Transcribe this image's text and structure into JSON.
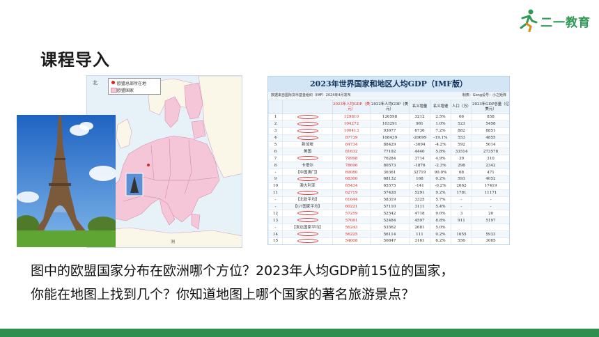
{
  "brand": {
    "logo_text": "二一教育"
  },
  "slide": {
    "heading": "课程导入"
  },
  "map": {
    "legend": {
      "capital": "欧盟总部所在地",
      "members": "欧盟国家"
    }
  },
  "gdp_table": {
    "title": "2023年世界国家和地区人均GDP（IMF版）",
    "source_left": "数据来自国际货币基金组织（IMF）2024年4月发布",
    "source_right": "制表：Gong设号：小之矩阵",
    "columns": [
      "",
      "",
      "2023年人均GDP（美元）",
      "2022年人均GDP（美元）",
      "名义增量",
      "名义增速",
      "人口（万）",
      "2023年GDP总量（亿美元）"
    ],
    "rows": [
      {
        "rank": "1",
        "name": "",
        "circled": true,
        "gdp2023": "129810",
        "gdp2022": "126598",
        "delta": "3212",
        "rate": "2.5%",
        "pop": "66",
        "total": "858"
      },
      {
        "rank": "2",
        "name": "",
        "circled": true,
        "gdp2023": "104272",
        "gdp2022": "103291",
        "delta": "981",
        "rate": "1.0%",
        "pop": "523",
        "total": "5458"
      },
      {
        "rank": "3",
        "name": "",
        "circled": true,
        "gdp2023": "100413",
        "gdp2022": "93677",
        "delta": "6736",
        "rate": "7.2%",
        "pop": "882",
        "total": "8851"
      },
      {
        "rank": "4",
        "name": "",
        "circled": true,
        "gdp2023": "87739",
        "gdp2022": "108439",
        "delta": "-20699",
        "rate": "-19.1%",
        "pop": "553",
        "total": "4855"
      },
      {
        "rank": "5",
        "name": "新加坡",
        "circled": false,
        "gdp2023": "84734",
        "gdp2022": "88429",
        "delta": "-3694",
        "rate": "-4.2%",
        "pop": "592",
        "total": "5014"
      },
      {
        "rank": "6",
        "name": "美国",
        "circled": false,
        "gdp2023": "81632",
        "gdp2022": "77192",
        "delta": "4440",
        "rate": "5.8%",
        "pop": "33514",
        "total": "273578"
      },
      {
        "rank": "7",
        "name": "",
        "circled": true,
        "gdp2023": "79998",
        "gdp2022": "76284",
        "delta": "3714",
        "rate": "4.9%",
        "pop": "39",
        "total": "310"
      },
      {
        "rank": "8",
        "name": "卡塔尔",
        "circled": false,
        "gdp2023": "78696",
        "gdp2022": "80573",
        "delta": "-1876",
        "rate": "-2.3%",
        "pop": "298",
        "total": "2342"
      },
      {
        "rank": "-",
        "name": "【中国澳门】",
        "circled": false,
        "gdp2023": "69080",
        "gdp2022": "36361",
        "delta": "32719",
        "rate": "90.0%",
        "pop": "68",
        "total": "471"
      },
      {
        "rank": "9",
        "name": "",
        "circled": true,
        "gdp2023": "68300",
        "gdp2022": "68132",
        "delta": "168",
        "rate": "0.2%",
        "pop": "593",
        "total": "4052"
      },
      {
        "rank": "10",
        "name": "澳大利亚",
        "circled": false,
        "gdp2023": "65434",
        "gdp2022": "65575",
        "delta": "-141",
        "rate": "-0.2%",
        "pop": "2662",
        "total": "17419"
      },
      {
        "rank": "11",
        "name": "",
        "circled": true,
        "gdp2023": "62719",
        "gdp2022": "57428",
        "delta": "5291",
        "rate": "9.2%",
        "pop": "1781",
        "total": "11171"
      },
      {
        "rank": "-",
        "name": "【北欧平均】",
        "circled": false,
        "gdp2023": "61644",
        "gdp2022": "58319",
        "delta": "3325",
        "rate": "5.7%",
        "pop": "-",
        "total": "-"
      },
      {
        "rank": "-",
        "name": "【G7国家平均】",
        "circled": false,
        "gdp2023": "60221",
        "gdp2022": "57110",
        "delta": "3111",
        "rate": "5.4%",
        "pop": "-",
        "total": "-"
      },
      {
        "rank": "12",
        "name": "",
        "circled": true,
        "gdp2023": "57259",
        "gdp2022": "52542",
        "delta": "4718",
        "rate": "9.0%",
        "pop": "3",
        "total": "20"
      },
      {
        "rank": "13",
        "name": "",
        "circled": true,
        "gdp2023": "57081",
        "gdp2022": "52484",
        "delta": "4597",
        "rate": "8.8%",
        "pop": "911",
        "total": "5197"
      },
      {
        "rank": "-",
        "name": "【发达国家平均】",
        "circled": false,
        "gdp2023": "56243",
        "gdp2022": "53562",
        "delta": "2681",
        "rate": "5.0%",
        "pop": "",
        "total": ""
      },
      {
        "rank": "14",
        "name": "",
        "circled": true,
        "gdp2023": "56225",
        "gdp2022": "56114",
        "delta": "111",
        "rate": "0.2%",
        "pop": "1055",
        "total": "5933"
      },
      {
        "rank": "15",
        "name": "",
        "circled": true,
        "gdp2023": "54008",
        "gdp2022": "50847",
        "delta": "3161",
        "rate": "6.2%",
        "pop": "556",
        "total": "3005"
      }
    ]
  },
  "question": {
    "line1": "图中的欧盟国家分布在欧洲哪个方位？2023年人均GDP前15位的国家，",
    "line2": "你能在地图上找到几个？你知道地图上哪个国家的著名旅游景点？"
  },
  "colors": {
    "accent_green": "#2f8f4e",
    "highlight_red": "#d22222",
    "eu_pink": "#f4c6d8",
    "sea_blue": "#e6f1f8"
  }
}
